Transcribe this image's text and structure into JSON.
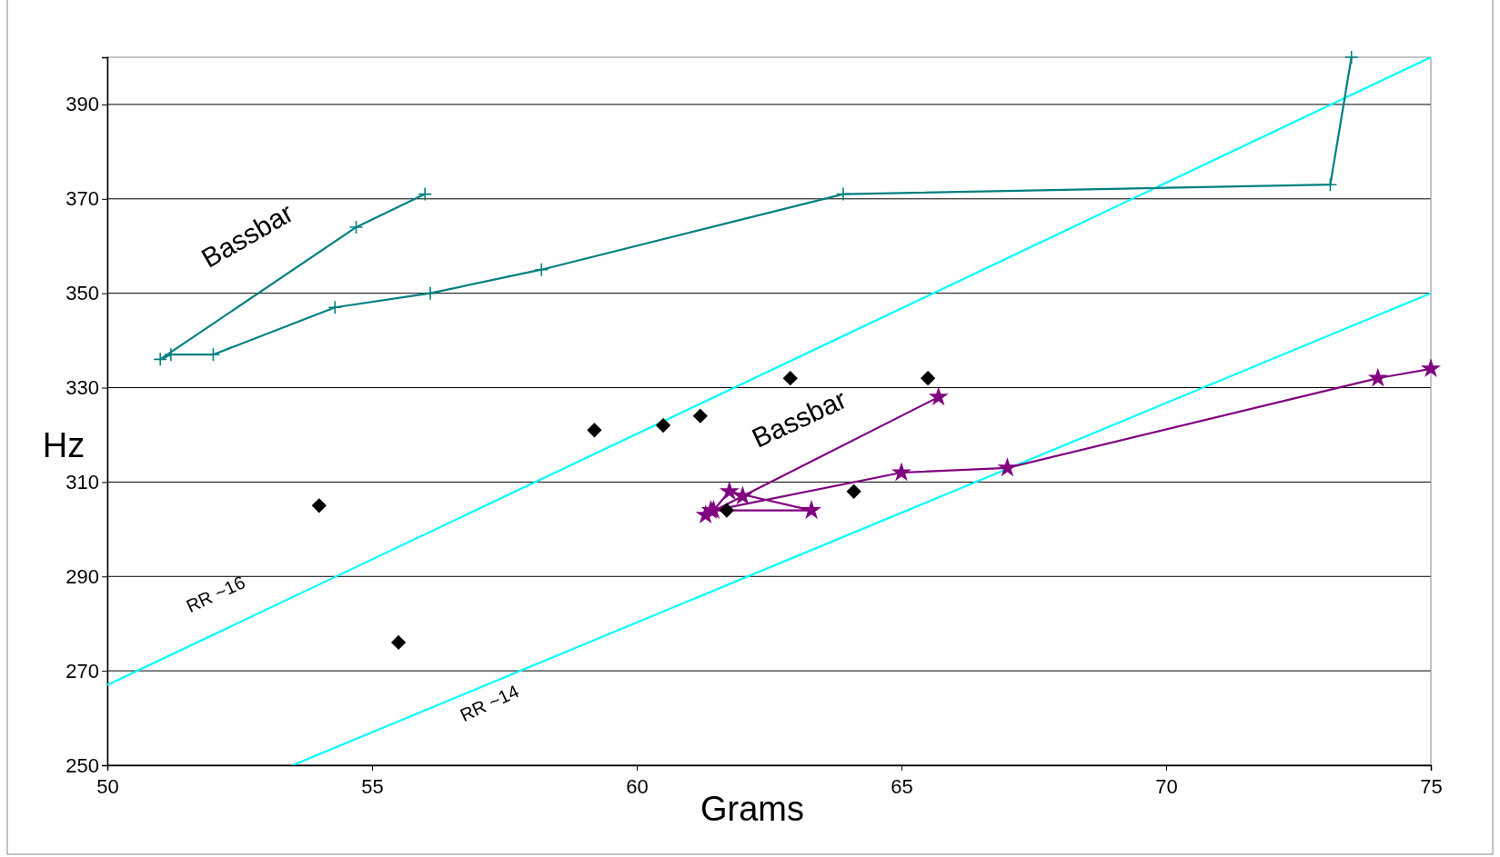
{
  "chart_data": {
    "type": "scatter",
    "xlabel": "Grams",
    "ylabel": "Hz",
    "xlim": [
      50,
      75
    ],
    "ylim": [
      250,
      400
    ],
    "xticks": [
      50,
      55,
      60,
      65,
      70,
      75
    ],
    "yticks": [
      250,
      270,
      290,
      310,
      330,
      350,
      370,
      390
    ],
    "grid": "y",
    "series": [
      {
        "type": "line",
        "color": "#00ffff",
        "marker": "none",
        "x": [
          50,
          75
        ],
        "values": [
          267,
          400
        ]
      },
      {
        "type": "line",
        "color": "#00ffff",
        "marker": "none",
        "x": [
          53.5,
          75
        ],
        "values": [
          250,
          350
        ]
      },
      {
        "type": "line",
        "color": "#008080",
        "marker": "cross",
        "x": [
          56,
          54.7,
          51,
          51.2,
          52,
          54.3,
          56.1,
          58.2,
          63.9,
          73.1,
          73.5
        ],
        "values": [
          371,
          364,
          336,
          337,
          337,
          347,
          350,
          355,
          371,
          373,
          400
        ]
      },
      {
        "type": "line",
        "color": "#800080",
        "marker": "star",
        "x": [
          65.7,
          62,
          61.3,
          61.4,
          63.3,
          61.75,
          61.45,
          65,
          67,
          74,
          75
        ],
        "values": [
          328,
          307,
          303,
          304,
          304,
          308,
          304,
          312,
          313,
          332,
          334
        ]
      },
      {
        "type": "scatter",
        "color": "#000000",
        "marker": "diamond",
        "x": [
          54,
          55.5,
          59.2,
          60.5,
          61.2,
          62.9,
          65.5,
          61.7,
          64.1
        ],
        "values": [
          305,
          276,
          321,
          322,
          324,
          332,
          332,
          304,
          308
        ]
      }
    ],
    "annotations": [
      "Bassbar",
      "Bassbar",
      "RR ~16",
      "RR ~14"
    ]
  }
}
